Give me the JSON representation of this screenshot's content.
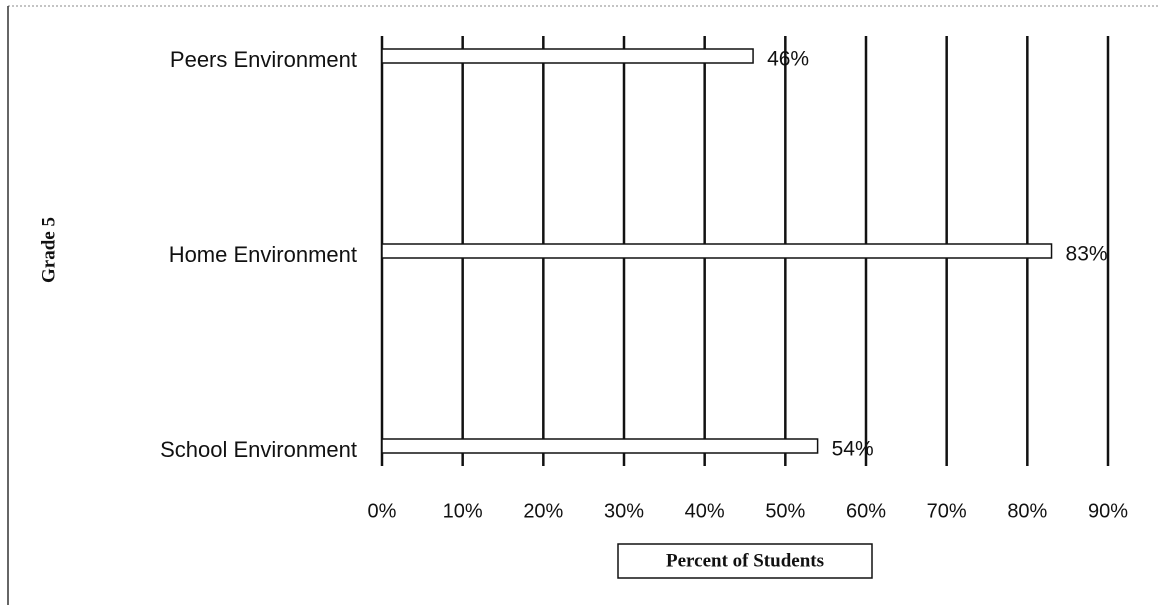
{
  "chart_data": {
    "type": "bar",
    "orientation": "horizontal",
    "categories": [
      "Peers Environment",
      "Home Environment",
      "School Environment"
    ],
    "values": [
      46,
      83,
      54
    ],
    "value_labels": [
      "46%",
      "83%",
      "54%"
    ],
    "color": "#ffffff",
    "xlim": [
      0,
      90
    ],
    "xticks": [
      {
        "value": 0,
        "label": "0%"
      },
      {
        "value": 10,
        "label": "10%"
      },
      {
        "value": 20,
        "label": "20%"
      },
      {
        "value": 30,
        "label": "30%"
      },
      {
        "value": 40,
        "label": "40%"
      },
      {
        "value": 50,
        "label": "50%"
      },
      {
        "value": 60,
        "label": "60%"
      },
      {
        "value": 70,
        "label": "70%"
      },
      {
        "value": 80,
        "label": "80%"
      },
      {
        "value": 90,
        "label": "90%"
      }
    ],
    "grid": true,
    "xlabel": "Percent of Students",
    "ylabel": "Grade 5"
  }
}
